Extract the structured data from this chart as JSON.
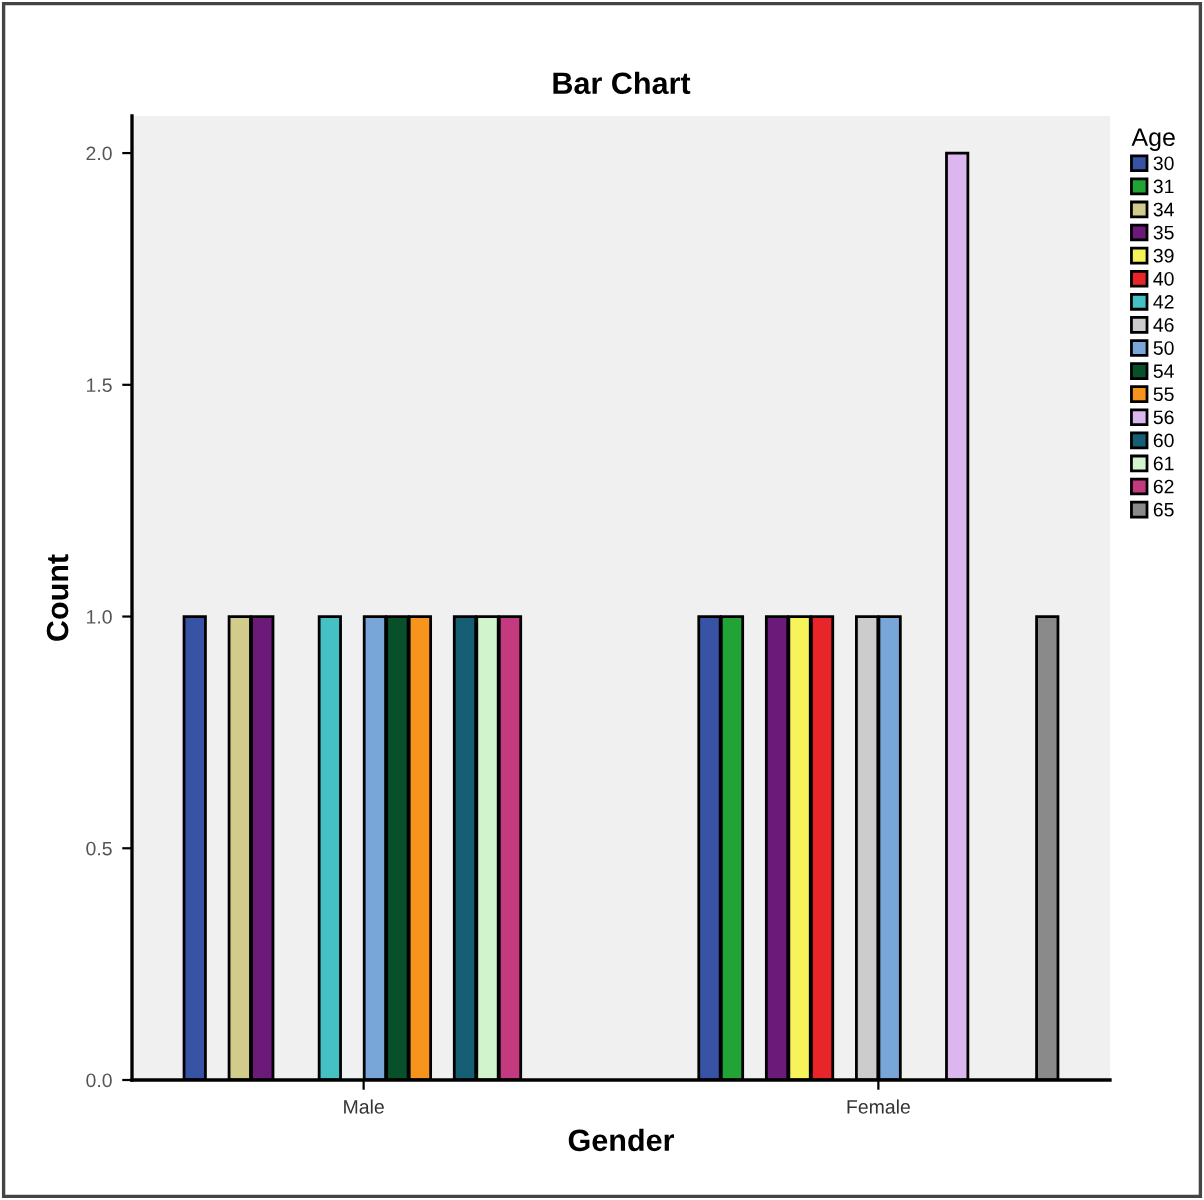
{
  "chart_data": {
    "type": "bar",
    "title": "Bar Chart",
    "xlabel": "Gender",
    "ylabel": "Count",
    "legend_title": "Age",
    "categories": [
      "Male",
      "Female"
    ],
    "series": [
      {
        "name": "30",
        "color": "#3953a4",
        "values": [
          1,
          1
        ]
      },
      {
        "name": "31",
        "color": "#21a336",
        "values": [
          null,
          1
        ]
      },
      {
        "name": "34",
        "color": "#d2cc8c",
        "values": [
          1,
          null
        ]
      },
      {
        "name": "35",
        "color": "#6b1a7a",
        "values": [
          1,
          1
        ]
      },
      {
        "name": "39",
        "color": "#f7f35a",
        "values": [
          null,
          1
        ]
      },
      {
        "name": "40",
        "color": "#e8262a",
        "values": [
          null,
          1
        ]
      },
      {
        "name": "42",
        "color": "#45c0c4",
        "values": [
          1,
          null
        ]
      },
      {
        "name": "46",
        "color": "#cccccc",
        "values": [
          null,
          1
        ]
      },
      {
        "name": "50",
        "color": "#78a6d8",
        "values": [
          1,
          1
        ]
      },
      {
        "name": "54",
        "color": "#08502a",
        "values": [
          1,
          null
        ]
      },
      {
        "name": "55",
        "color": "#f7941d",
        "values": [
          1,
          null
        ]
      },
      {
        "name": "56",
        "color": "#dcb6ee",
        "values": [
          null,
          2
        ]
      },
      {
        "name": "60",
        "color": "#165e74",
        "values": [
          1,
          null
        ]
      },
      {
        "name": "61",
        "color": "#d2f4cc",
        "values": [
          1,
          null
        ]
      },
      {
        "name": "62",
        "color": "#c33b7e",
        "values": [
          1,
          null
        ]
      },
      {
        "name": "65",
        "color": "#8a8a8a",
        "values": [
          null,
          1
        ]
      }
    ],
    "ylim": [
      0,
      2.08
    ],
    "yticks": [
      {
        "value": 0,
        "label": "0.0"
      },
      0.5,
      {
        "value": 1,
        "label": "1.0"
      },
      1.5,
      {
        "value": 2,
        "label": "2.0"
      }
    ],
    "grid": false,
    "legend": "right"
  }
}
